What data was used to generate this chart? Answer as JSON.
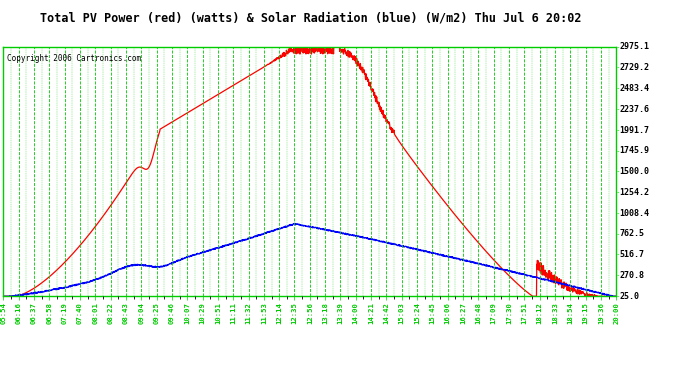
{
  "title": "Total PV Power (red) (watts) & Solar Radiation (blue) (W/m2) Thu Jul 6 20:02",
  "copyright": "Copyright 2006 Cartronics.com",
  "bg_color": "#ffffff",
  "plot_bg_color": "#ffffff",
  "title_color": "#000000",
  "grid_color": "#00cc00",
  "tick_color": "#00cc00",
  "label_color": "#000000",
  "red_line_color": "#ff0000",
  "blue_line_color": "#0000ff",
  "yticks": [
    25.0,
    270.8,
    516.7,
    762.5,
    1008.4,
    1254.2,
    1500.0,
    1745.9,
    1991.7,
    2237.6,
    2483.4,
    2729.2,
    2975.1
  ],
  "ymin": 25.0,
  "ymax": 2975.1,
  "xtick_labels": [
    "05:54",
    "06:16",
    "06:37",
    "06:58",
    "07:19",
    "07:40",
    "08:01",
    "08:22",
    "08:43",
    "09:04",
    "09:25",
    "09:46",
    "10:07",
    "10:29",
    "10:51",
    "11:11",
    "11:32",
    "11:53",
    "12:14",
    "12:35",
    "12:56",
    "13:18",
    "13:39",
    "14:00",
    "14:21",
    "14:42",
    "15:03",
    "15:24",
    "15:45",
    "16:06",
    "16:27",
    "16:48",
    "17:09",
    "17:30",
    "17:51",
    "18:12",
    "18:33",
    "18:54",
    "19:15",
    "19:36",
    "20:00"
  ]
}
